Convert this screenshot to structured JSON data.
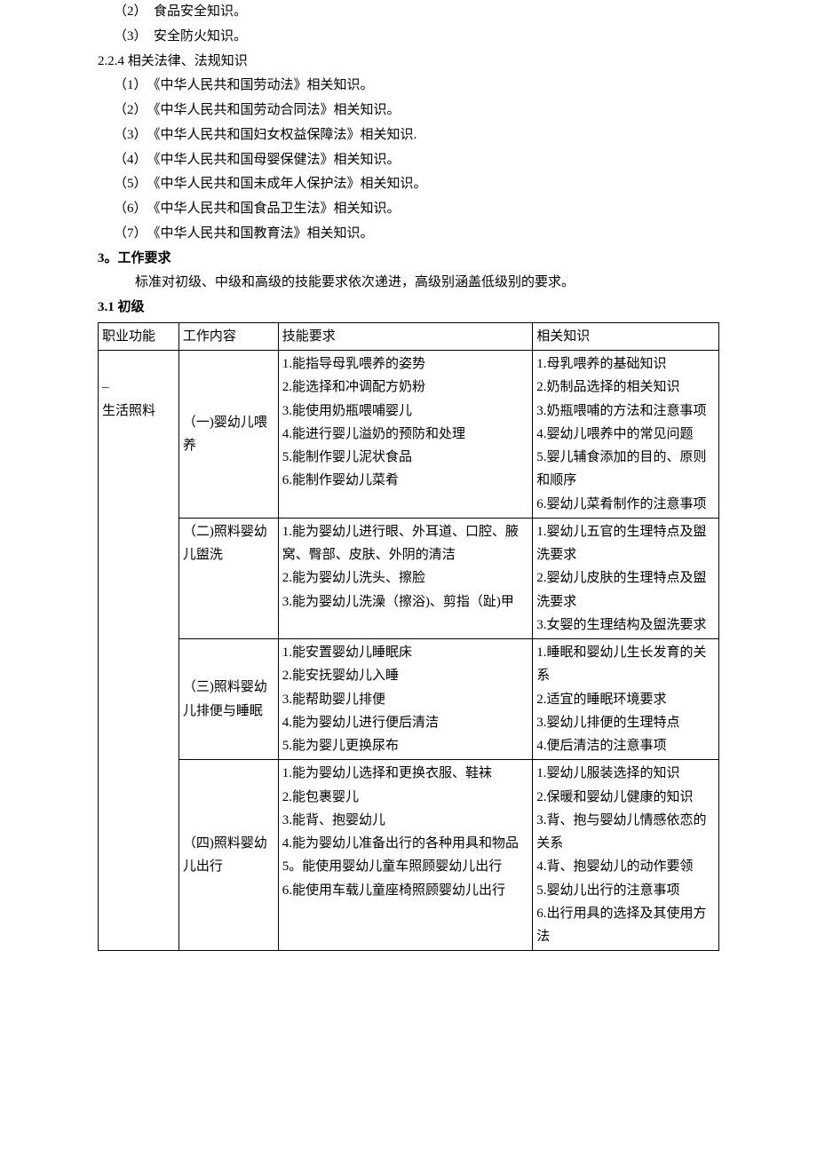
{
  "pre_items": [
    "（2）　食品安全知识。",
    "（3）　安全防火知识。"
  ],
  "subsection_heading": "2.2.4 相关法律、法规知识",
  "law_items": [
    "（1）　《中华人民共和国劳动法》相关知识。",
    "（2）　《中华人民共和国劳动合同法》相关知识。",
    "（3）　《中华人民共和国妇女权益保障法》相关知识.",
    "（4）　《中华人民共和国母婴保健法》相关知识。",
    "（5）　《中华人民共和国未成年人保护法》相关知识。",
    "（6）　《中华人民共和国食品卫生法》相关知识。",
    "（7）　《中华人民共和国教育法》相关知识。"
  ],
  "work_req_heading": "3。工作要求",
  "work_req_para": "标准对初级、中级和高级的技能要求依次递进，高级别涵盖低级别的要求。",
  "level_heading": "3.1 初级",
  "table": {
    "headers": {
      "func": "职业功能",
      "work": "工作内容",
      "skill": "技能要求",
      "know": "相关知识"
    },
    "func1": "生活照料",
    "rows": [
      {
        "work": "（一)婴幼儿喂养",
        "skill": "1.能指导母乳喂养的姿势\n2.能选择和冲调配方奶粉\n3.能使用奶瓶喂哺婴儿\n4.能进行婴儿溢奶的预防和处理\n5.能制作婴儿泥状食品\n6.能制作婴幼儿菜肴",
        "know": "1.母乳喂养的基础知识\n2.奶制品选择的相关知识\n3.奶瓶喂哺的方法和注意事项\n4.婴幼儿喂养中的常见问题\n5.婴儿辅食添加的目的、原则和顺序\n6.婴幼儿菜肴制作的注意事项"
      },
      {
        "work": "（二)照料婴幼儿盥洗",
        "skill": "1.能为婴幼儿进行眼、外耳道、口腔、腋窝、臀部、皮肤、外阴的清洁\n2.能为婴幼儿洗头、擦脸\n3.能为婴幼儿洗澡（擦浴)、剪指（趾)甲",
        "know": "1.婴幼儿五官的生理特点及盥洗要求\n2.婴幼儿皮肤的生理特点及盥洗要求\n3.女婴的生理结构及盥洗要求"
      },
      {
        "work": "（三)照料婴幼儿排便与睡眠",
        "skill": "1.能安置婴幼儿睡眠床\n2.能安抚婴幼儿入睡\n3.能帮助婴儿排便\n4.能为婴幼儿进行便后清洁\n5.能为婴儿更换尿布",
        "know": "1.睡眠和婴幼儿生长发育的关系\n2.适宜的睡眠环境要求\n3.婴幼儿排便的生理特点\n4.便后清洁的注意事项"
      },
      {
        "work": "（四)照料婴幼儿出行",
        "skill": "1.能为婴幼儿选择和更换衣服、鞋袜\n2.能包裹婴儿\n3.能背、抱婴幼儿\n4.能为婴幼儿准备出行的各种用具和物品\n5。能使用婴幼儿童车照顾婴幼儿出行\n6.能使用车载儿童座椅照顾婴幼儿出行",
        "know": "1.婴幼儿服装选择的知识\n2.保暖和婴幼儿健康的知识\n3.背、抱与婴幼儿情感依恋的关系\n4.背、抱婴幼儿的动作要领\n5.婴幼儿出行的注意事项\n6.出行用具的选择及其使用方法"
      }
    ]
  }
}
